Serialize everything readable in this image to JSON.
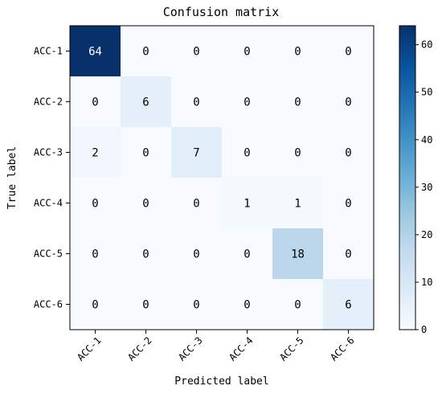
{
  "chart_data": {
    "type": "heatmap",
    "title": "Confusion matrix",
    "xlabel": "Predicted label",
    "ylabel": "True label",
    "row_labels": [
      "ACC-1",
      "ACC-2",
      "ACC-3",
      "ACC-4",
      "ACC-5",
      "ACC-6"
    ],
    "col_labels": [
      "ACC-1",
      "ACC-2",
      "ACC-3",
      "ACC-4",
      "ACC-5",
      "ACC-6"
    ],
    "values": [
      [
        64,
        0,
        0,
        0,
        0,
        0
      ],
      [
        0,
        6,
        0,
        0,
        0,
        0
      ],
      [
        2,
        0,
        7,
        0,
        0,
        0
      ],
      [
        0,
        0,
        0,
        1,
        1,
        0
      ],
      [
        0,
        0,
        0,
        0,
        18,
        0
      ],
      [
        0,
        0,
        0,
        0,
        0,
        6
      ]
    ],
    "colormap": "Blues",
    "colorbar": {
      "range": [
        0,
        64
      ],
      "ticks": [
        0,
        10,
        20,
        30,
        40,
        50,
        60
      ]
    },
    "grid": false
  }
}
